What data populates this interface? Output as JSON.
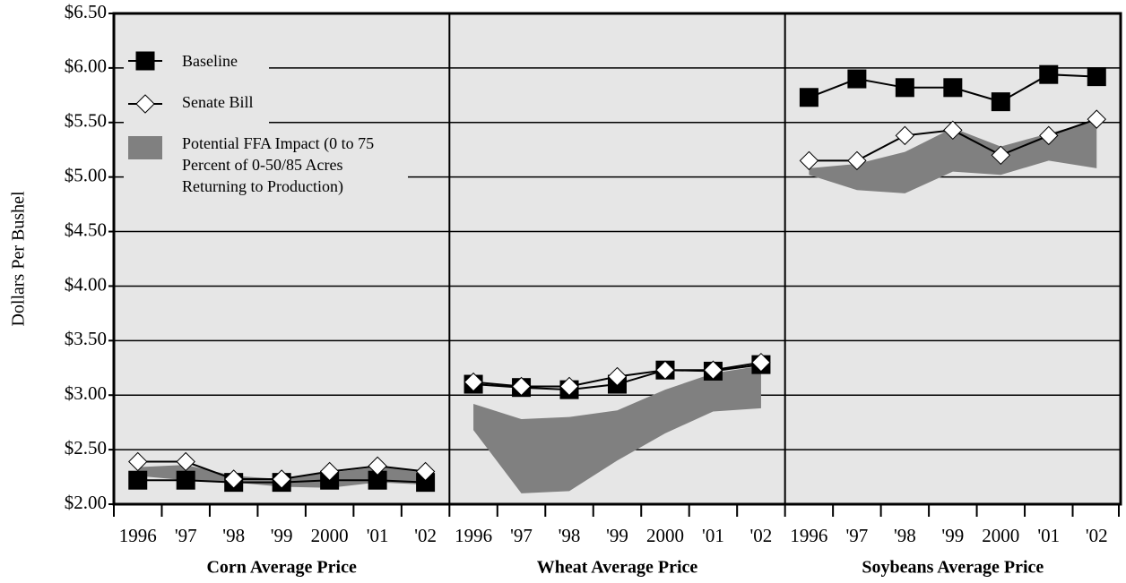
{
  "chart_data": {
    "type": "line",
    "ylabel": "Dollars Per Bushel",
    "ylim": [
      2,
      6.5
    ],
    "yticks": [
      {
        "value": 2,
        "label": "$2.00"
      },
      {
        "value": 2.5,
        "label": "$2.50"
      },
      {
        "value": 3,
        "label": "$3.00"
      },
      {
        "value": 3.5,
        "label": "$3.50"
      },
      {
        "value": 4,
        "label": "$4.00"
      },
      {
        "value": 4.5,
        "label": "$4.50"
      },
      {
        "value": 5,
        "label": "$5.00"
      },
      {
        "value": 5.5,
        "label": "$5.50"
      },
      {
        "value": 6,
        "label": "$6.00"
      },
      {
        "value": 6.5,
        "label": "$6.50"
      }
    ],
    "grid": true,
    "legend_position": "upper left",
    "legend": [
      {
        "name": "Baseline",
        "color": "#000000",
        "marker": "square"
      },
      {
        "name": "Senate Bill",
        "color": "#ffffff",
        "marker": "diamond"
      },
      {
        "name": [
          "Potential FFA Impact (0 to 75",
          "Percent of 0-50/85 Acres",
          "Returning to Production)"
        ],
        "color": "#808080",
        "marker": "band"
      }
    ],
    "panels": [
      {
        "title": "Corn Average Price",
        "categories": [
          "1996",
          "'97",
          "'98",
          "'99",
          "2000",
          "'01",
          "'02"
        ],
        "series": [
          {
            "values": [
              2.22,
              2.22,
              2.2,
              2.2,
              2.22,
              2.22,
              2.2
            ]
          },
          {
            "values": [
              2.39,
              2.39,
              2.23,
              2.23,
              2.3,
              2.35,
              2.3
            ]
          }
        ],
        "band": {
          "high": [
            2.34,
            2.36,
            2.26,
            2.23,
            2.29,
            2.34,
            2.3
          ],
          "low": [
            2.26,
            2.22,
            2.2,
            2.16,
            2.15,
            2.2,
            2.18
          ]
        }
      },
      {
        "title": "Wheat Average Price",
        "categories": [
          "1996",
          "'97",
          "'98",
          "'99",
          "2000",
          "'01",
          "'02"
        ],
        "series": [
          {
            "values": [
              3.1,
              3.07,
              3.05,
              3.1,
              3.23,
              3.22,
              3.28
            ]
          },
          {
            "values": [
              3.12,
              3.08,
              3.08,
              3.17,
              3.23,
              3.23,
              3.3
            ]
          }
        ],
        "band": {
          "high": [
            2.92,
            2.78,
            2.8,
            2.86,
            3.05,
            3.2,
            3.27
          ],
          "low": [
            2.68,
            2.1,
            2.12,
            2.4,
            2.65,
            2.85,
            2.88
          ]
        }
      },
      {
        "title": "Soybeans Average Price",
        "categories": [
          "1996",
          "'97",
          "'98",
          "'99",
          "2000",
          "'01",
          "'02"
        ],
        "series": [
          {
            "values": [
              5.73,
              5.9,
              5.82,
              5.82,
              5.69,
              5.94,
              5.92
            ]
          },
          {
            "values": [
              5.15,
              5.15,
              5.38,
              5.43,
              5.2,
              5.38,
              5.53
            ]
          }
        ],
        "band": {
          "high": [
            5.08,
            5.12,
            5.23,
            5.45,
            5.28,
            5.4,
            5.52
          ],
          "low": [
            5.02,
            4.88,
            4.85,
            5.05,
            5.02,
            5.15,
            5.08
          ]
        }
      }
    ]
  }
}
